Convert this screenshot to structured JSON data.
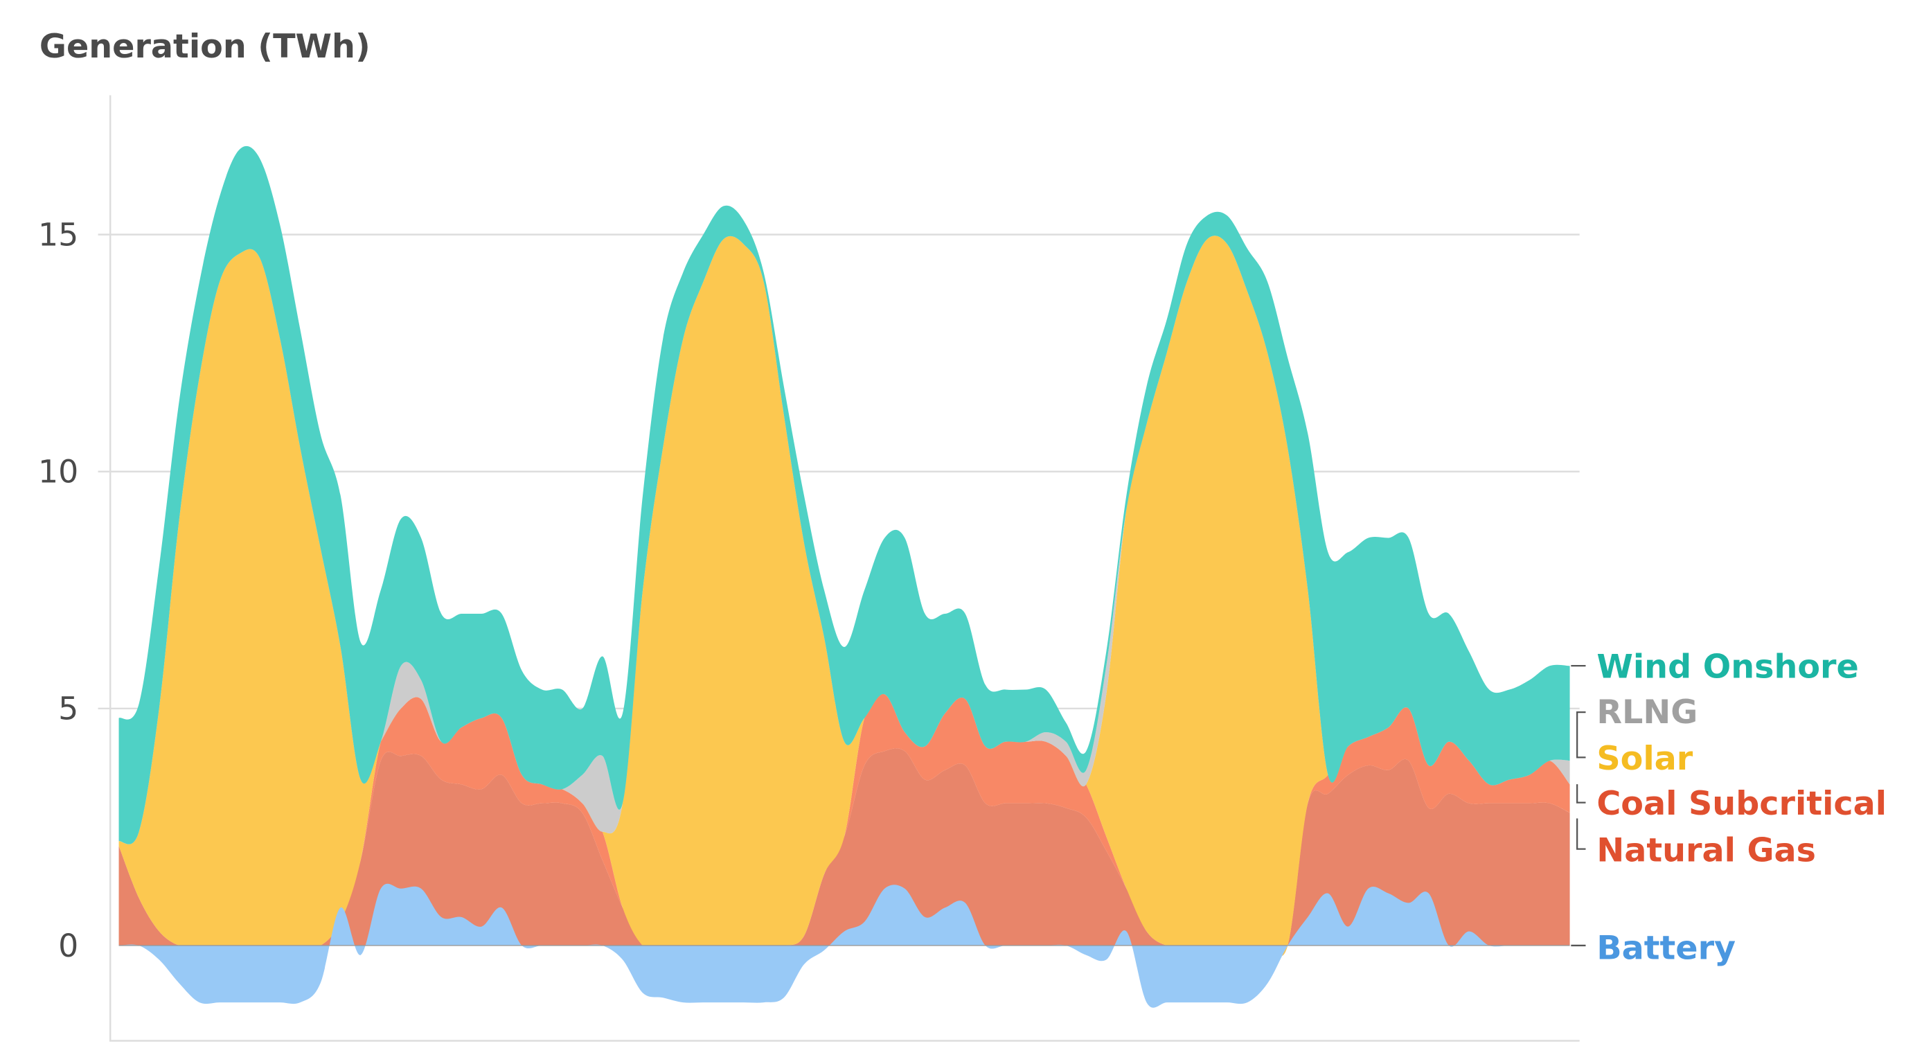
{
  "chart_data": {
    "type": "area",
    "title": "Generation (TWh)",
    "xlabel": "",
    "ylabel": "Generation (TWh)",
    "ylim": [
      -2,
      17.5
    ],
    "yticks": [
      0,
      5,
      10,
      15
    ],
    "ytick_labels": [
      "0",
      "5",
      "10",
      "15"
    ],
    "grid": true,
    "legend_placement": "right",
    "x_unit": "hour",
    "x": [
      0,
      1,
      2,
      3,
      4,
      5,
      6,
      7,
      8,
      9,
      10,
      11,
      12,
      13,
      14,
      15,
      16,
      17,
      18,
      19,
      20,
      21,
      22,
      23,
      24,
      25,
      26,
      27,
      28,
      29,
      30,
      31,
      32,
      33,
      34,
      35,
      36,
      37,
      38,
      39,
      40,
      41,
      42,
      43,
      44,
      45,
      46,
      47,
      48,
      49,
      50,
      51,
      52,
      53,
      54,
      55,
      56,
      57,
      58,
      59,
      60,
      61,
      62,
      63,
      64,
      65,
      66,
      67,
      68,
      69,
      70,
      71,
      72
    ],
    "series": [
      {
        "name": "Natural Gas",
        "key": "gas",
        "fill": "#E8856A",
        "label_color": "#E0502F",
        "values": [
          2.1,
          1.0,
          0.3,
          0,
          0,
          0,
          0,
          0,
          0,
          0,
          0,
          0.5,
          1.8,
          3.9,
          4.0,
          4.0,
          3.5,
          3.4,
          3.3,
          3.6,
          3.0,
          3.0,
          3.0,
          2.8,
          1.8,
          0.8,
          0,
          0,
          0,
          0,
          0,
          0,
          0,
          0,
          0.2,
          1.5,
          2.3,
          3.8,
          4.1,
          4.1,
          3.5,
          3.7,
          3.8,
          3.0,
          3.0,
          3.0,
          3.0,
          2.9,
          2.7,
          2.0,
          1.2,
          0.3,
          0,
          0,
          0,
          0,
          0,
          0,
          0,
          3.0,
          3.2,
          3.6,
          3.8,
          3.7,
          3.9,
          2.9,
          3.2,
          3.0,
          3.0,
          3.0,
          3.0,
          3.0,
          2.8
        ]
      },
      {
        "name": "Coal Subcritical",
        "key": "coal",
        "fill": "#F88866",
        "label_color": "#E0502F",
        "values": [
          0,
          0,
          0,
          0,
          0,
          0,
          0,
          0,
          0,
          0,
          0,
          0,
          0,
          0.4,
          1.0,
          1.2,
          0.8,
          1.2,
          1.5,
          1.2,
          0.6,
          0.4,
          0.3,
          0.2,
          0.6,
          0,
          0,
          0,
          0,
          0,
          0,
          0,
          0,
          0,
          0,
          0,
          0,
          1.0,
          1.2,
          0.4,
          0.7,
          1.2,
          1.4,
          1.2,
          1.3,
          1.3,
          1.3,
          1.1,
          0.7,
          0.3,
          0,
          0,
          0,
          0,
          0,
          0,
          0,
          0,
          0,
          0,
          0.4,
          0.6,
          0.6,
          0.9,
          1.1,
          0.9,
          1.1,
          0.9,
          0.4,
          0.5,
          0.6,
          0.9,
          0.6
        ]
      },
      {
        "name": "Solar",
        "key": "solar",
        "fill": "#FCC850",
        "label_color": "#F5BC22",
        "values": [
          0.1,
          1.4,
          4.7,
          9.0,
          12.0,
          14.0,
          14.6,
          14.5,
          12.8,
          10.5,
          8.4,
          5.8,
          1.7,
          0,
          0,
          0,
          0,
          0,
          0,
          0,
          0,
          0,
          0,
          0,
          0,
          2.2,
          7.5,
          10.5,
          12.8,
          14.0,
          14.9,
          14.8,
          14.0,
          11.2,
          8.3,
          5.0,
          2.0,
          0,
          0,
          0,
          0,
          0,
          0,
          0,
          0,
          0,
          0,
          0,
          0,
          3.0,
          8.0,
          10.7,
          12.5,
          14.0,
          14.9,
          14.8,
          13.8,
          12.5,
          10.5,
          4.5,
          0,
          0,
          0,
          0,
          0,
          0,
          0,
          0,
          0,
          0,
          0,
          0,
          0
        ]
      },
      {
        "name": "RLNG",
        "key": "rlng",
        "fill": "#CCCCCC",
        "label_color": "#A0A0A0",
        "values": [
          0,
          0,
          0,
          0,
          0,
          0,
          0,
          0,
          0,
          0,
          0,
          0,
          0,
          0,
          0.9,
          0.4,
          0,
          0,
          0,
          0,
          0,
          0,
          0,
          0.6,
          1.6,
          0,
          0,
          0,
          0,
          0,
          0,
          0,
          0,
          0,
          0,
          0,
          0,
          0,
          0,
          0,
          0,
          0,
          0,
          0,
          0,
          0,
          0.2,
          0.3,
          0.3,
          0.6,
          0,
          0,
          0,
          0,
          0,
          0,
          0,
          0,
          0,
          0,
          0,
          0,
          0,
          0,
          0,
          0,
          0,
          0,
          0,
          0,
          0,
          0,
          0.5
        ]
      },
      {
        "name": "Wind Onshore",
        "key": "wind",
        "fill": "#4FD1C5",
        "label_color": "#1BB5A3",
        "values": [
          2.6,
          2.7,
          3.0,
          2.5,
          2.0,
          1.8,
          2.2,
          2.1,
          2.4,
          2.5,
          2.4,
          3.2,
          2.9,
          3.2,
          3.1,
          3.0,
          2.7,
          2.4,
          2.2,
          2.2,
          2.2,
          2.0,
          2.1,
          1.4,
          2.1,
          1.9,
          2.0,
          2.3,
          1.4,
          1.0,
          0.7,
          0.5,
          0.2,
          0.6,
          1.0,
          1.0,
          2.0,
          2.7,
          3.3,
          4.1,
          2.8,
          2.1,
          1.8,
          1.3,
          1.1,
          1.1,
          0.9,
          0.4,
          0.4,
          0.3,
          0.3,
          0.8,
          0.7,
          0.8,
          0.5,
          0.6,
          0.9,
          1.5,
          1.9,
          3.3,
          4.7,
          4.1,
          4.2,
          4.0,
          3.6,
          3.2,
          2.7,
          2.3,
          2.0,
          1.9,
          2.0,
          2.0,
          2.0
        ]
      },
      {
        "name": "Battery",
        "key": "battery",
        "fill": "#98C9F6",
        "label_color": "#4A97E0",
        "stacked": false,
        "values": [
          0,
          0,
          -0.3,
          -0.8,
          -1.2,
          -1.2,
          -1.2,
          -1.2,
          -1.2,
          -1.2,
          -0.8,
          0.8,
          -0.2,
          1.2,
          1.2,
          1.2,
          0.6,
          0.6,
          0.4,
          0.8,
          0,
          0,
          0,
          0,
          0,
          -0.3,
          -1.0,
          -1.1,
          -1.2,
          -1.2,
          -1.2,
          -1.2,
          -1.2,
          -1.1,
          -0.4,
          -0.1,
          0.3,
          0.5,
          1.2,
          1.2,
          0.6,
          0.8,
          0.9,
          0,
          0,
          0,
          0,
          0,
          -0.2,
          -0.3,
          0.3,
          -1.2,
          -1.2,
          -1.2,
          -1.2,
          -1.2,
          -1.2,
          -0.8,
          0,
          0.6,
          1.1,
          0.4,
          1.2,
          1.1,
          0.9,
          1.1,
          0,
          0.3,
          0,
          0,
          0,
          0,
          0
        ]
      }
    ],
    "legend": [
      "Wind Onshore",
      "RLNG",
      "Solar",
      "Coal Subcritical",
      "Natural Gas",
      "Battery"
    ]
  }
}
